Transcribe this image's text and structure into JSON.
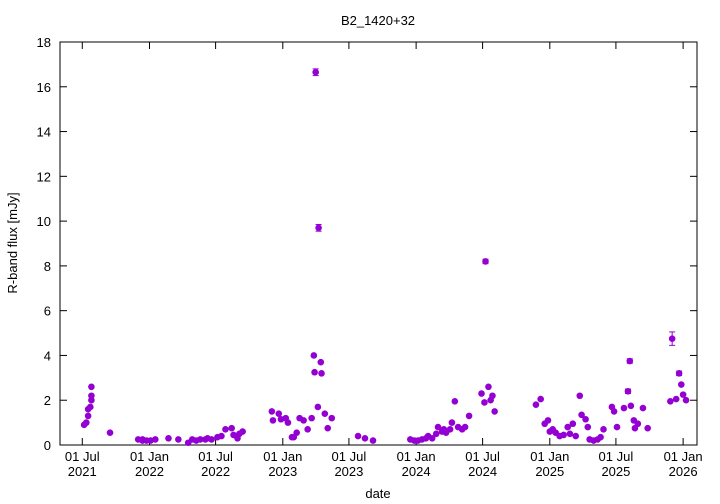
{
  "chart_data": {
    "type": "scatter",
    "title": "B2_1420+32",
    "xlabel": "date",
    "ylabel": "R-band flux [mJy]",
    "x": [
      "2021-07-06",
      "2021-07-12",
      "2021-07-17",
      "2021-07-17",
      "2021-07-23",
      "2021-07-26",
      "2021-07-26",
      "2021-07-26",
      "2021-09-15",
      "2021-12-01",
      "2021-12-13",
      "2021-12-13",
      "2021-12-24",
      "2022-01-04",
      "2022-01-17",
      "2022-02-22",
      "2022-03-21",
      "2022-04-17",
      "2022-04-28",
      "2022-05-09",
      "2022-05-20",
      "2022-06-03",
      "2022-06-09",
      "2022-06-20",
      "2022-07-06",
      "2022-07-17",
      "2022-07-28",
      "2022-08-14",
      "2022-08-19",
      "2022-08-30",
      "2022-09-04",
      "2022-09-13",
      "2022-12-02",
      "2022-12-05",
      "2022-12-21",
      "2022-12-27",
      "2023-01-09",
      "2023-01-15",
      "2023-01-26",
      "2023-01-31",
      "2023-02-08",
      "2023-02-16",
      "2023-02-27",
      "2023-03-10",
      "2023-03-21",
      "2023-03-27",
      "2023-03-29",
      "2023-04-01",
      "2023-04-07",
      "2023-04-09",
      "2023-04-15",
      "2023-04-17",
      "2023-04-26",
      "2023-05-04",
      "2023-05-15",
      "2023-07-26",
      "2023-08-14",
      "2023-09-05",
      "2023-12-16",
      "2023-12-27",
      "2024-01-06",
      "2024-01-17",
      "2024-01-28",
      "2024-02-03",
      "2024-02-14",
      "2024-02-25",
      "2024-03-01",
      "2024-03-12",
      "2024-03-17",
      "2024-03-23",
      "2024-04-03",
      "2024-04-08",
      "2024-04-16",
      "2024-04-25",
      "2024-05-06",
      "2024-05-14",
      "2024-05-25",
      "2024-06-28",
      "2024-07-06",
      "2024-07-09",
      "2024-07-17",
      "2024-07-23",
      "2024-07-28",
      "2024-08-03",
      "2024-11-24",
      "2024-12-07",
      "2024-12-18",
      "2024-12-27",
      "2025-01-01",
      "2025-01-09",
      "2025-01-17",
      "2025-01-28",
      "2025-02-08",
      "2025-02-19",
      "2025-02-25",
      "2025-03-05",
      "2025-03-13",
      "2025-03-24",
      "2025-03-29",
      "2025-04-09",
      "2025-04-15",
      "2025-04-20",
      "2025-05-01",
      "2025-05-12",
      "2025-05-20",
      "2025-05-28",
      "2025-06-20",
      "2025-06-26",
      "2025-07-04",
      "2025-07-23",
      "2025-08-03",
      "2025-08-08",
      "2025-08-11",
      "2025-08-19",
      "2025-08-22",
      "2025-08-30",
      "2025-09-13",
      "2025-09-26",
      "2025-11-27",
      "2025-12-02",
      "2025-12-13",
      "2025-12-21",
      "2025-12-27",
      "2026-01-01",
      "2026-01-09"
    ],
    "values": [
      0.9,
      1.0,
      1.3,
      1.6,
      1.7,
      2.6,
      2.2,
      2.0,
      0.55,
      0.25,
      0.2,
      0.25,
      0.2,
      0.2,
      0.25,
      0.3,
      0.25,
      0.1,
      0.25,
      0.2,
      0.25,
      0.25,
      0.3,
      0.25,
      0.35,
      0.4,
      0.7,
      0.75,
      0.45,
      0.3,
      0.5,
      0.6,
      1.5,
      1.1,
      1.4,
      1.15,
      1.2,
      1.0,
      0.35,
      0.35,
      0.55,
      1.2,
      1.1,
      0.7,
      1.2,
      4.0,
      3.25,
      16.65,
      1.7,
      9.7,
      3.7,
      3.2,
      1.4,
      0.75,
      1.2,
      0.4,
      0.3,
      0.2,
      0.25,
      0.2,
      0.2,
      0.25,
      0.3,
      0.4,
      0.3,
      0.5,
      0.8,
      0.6,
      0.7,
      0.55,
      0.7,
      1.0,
      1.95,
      0.8,
      0.7,
      0.8,
      1.3,
      2.3,
      1.9,
      8.2,
      2.6,
      2.0,
      2.2,
      1.5,
      1.8,
      2.05,
      0.95,
      1.1,
      0.6,
      0.7,
      0.55,
      0.4,
      0.45,
      0.8,
      0.5,
      0.95,
      0.4,
      2.2,
      1.35,
      1.15,
      0.8,
      0.25,
      0.2,
      0.25,
      0.35,
      0.7,
      1.7,
      1.5,
      0.8,
      1.65,
      2.4,
      3.75,
      1.75,
      1.1,
      0.75,
      0.95,
      1.65,
      0.75,
      1.95,
      4.75,
      2.05,
      3.2,
      2.7,
      2.25,
      2.0
    ],
    "errors": [
      null,
      null,
      null,
      null,
      null,
      null,
      null,
      null,
      null,
      null,
      null,
      null,
      null,
      null,
      null,
      null,
      null,
      null,
      null,
      null,
      null,
      null,
      null,
      null,
      null,
      null,
      null,
      null,
      null,
      null,
      null,
      null,
      null,
      null,
      null,
      null,
      null,
      null,
      null,
      null,
      null,
      null,
      null,
      null,
      null,
      null,
      null,
      0.15,
      null,
      0.15,
      null,
      null,
      null,
      null,
      null,
      null,
      null,
      null,
      null,
      null,
      null,
      null,
      null,
      null,
      null,
      null,
      null,
      null,
      null,
      null,
      null,
      null,
      null,
      null,
      null,
      null,
      null,
      null,
      null,
      0.1,
      null,
      null,
      null,
      null,
      null,
      null,
      null,
      null,
      null,
      null,
      null,
      null,
      null,
      null,
      null,
      null,
      null,
      null,
      null,
      null,
      null,
      null,
      null,
      null,
      null,
      null,
      null,
      null,
      null,
      null,
      0.1,
      0.1,
      null,
      null,
      null,
      null,
      null,
      null,
      null,
      0.3,
      null,
      0.1,
      null,
      null,
      null
    ],
    "color": "#9400d3",
    "xlim": [
      "2021-05-01",
      "2026-02-08"
    ],
    "xticks": [
      {
        "value": "2021-07-01",
        "label": "01 Jul\n2021"
      },
      {
        "value": "2022-01-01",
        "label": "01 Jan\n2022"
      },
      {
        "value": "2022-07-01",
        "label": "01 Jul\n2022"
      },
      {
        "value": "2023-01-01",
        "label": "01 Jan\n2023"
      },
      {
        "value": "2023-07-01",
        "label": "01 Jul\n2023"
      },
      {
        "value": "2024-01-01",
        "label": "01 Jan\n2024"
      },
      {
        "value": "2024-07-01",
        "label": "01 Jul\n2024"
      },
      {
        "value": "2025-01-01",
        "label": "01 Jan\n2025"
      },
      {
        "value": "2025-07-01",
        "label": "01 Jul\n2025"
      },
      {
        "value": "2026-01-01",
        "label": "01 Jan\n2026"
      }
    ],
    "ylim": [
      0,
      18
    ],
    "yticks": [
      0,
      2,
      4,
      6,
      8,
      10,
      12,
      14,
      16,
      18
    ]
  }
}
